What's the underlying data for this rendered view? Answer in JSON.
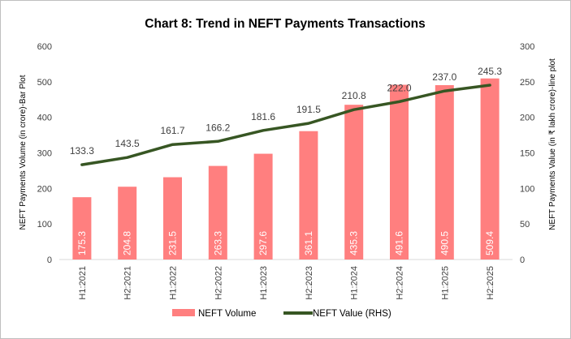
{
  "chart_data": {
    "type": "bar",
    "title": "Chart 8: Trend in NEFT Payments Transactions",
    "categories": [
      "H1:2021",
      "H2:2021",
      "H1:2022",
      "H2:2022",
      "H1:2023",
      "H2:2023",
      "H1:2024",
      "H2:2024",
      "H1:2025",
      "H2:2025"
    ],
    "series": [
      {
        "name": "NEFT Volume",
        "type": "bar",
        "axis": "left",
        "color": "#ff7f7f",
        "values": [
          175.3,
          204.8,
          231.5,
          263.3,
          297.6,
          361.1,
          435.3,
          491.6,
          490.5,
          509.4
        ],
        "labels": [
          "175.3",
          "204.8",
          "231.5",
          "263.3",
          "297.6",
          "361.1",
          "435.3",
          "491.6",
          "490.5",
          "509.4"
        ]
      },
      {
        "name": "NEFT  Value (RHS)",
        "type": "line",
        "axis": "right",
        "color": "#375623",
        "values": [
          133.3,
          143.5,
          161.7,
          166.2,
          181.6,
          191.5,
          210.8,
          222.0,
          237.0,
          245.3
        ],
        "labels": [
          "133.3",
          "143.5",
          "161.7",
          "166.2",
          "181.6",
          "191.5",
          "210.8",
          "222.0",
          "237.0",
          "245.3"
        ]
      }
    ],
    "ylabel": "NEFT Payments Volume (in crore)-Bar Plot",
    "y2label": "NEFT Payments Value (in ₹ lakh crore)-line plot",
    "ylim": [
      0,
      600
    ],
    "y2lim": [
      0,
      300
    ],
    "yticks": [
      "0",
      "100",
      "200",
      "300",
      "400",
      "500",
      "600"
    ],
    "y2ticks": [
      "0",
      "50",
      "100",
      "150",
      "200",
      "250",
      "300"
    ],
    "grid": false,
    "legend_position": "bottom"
  }
}
